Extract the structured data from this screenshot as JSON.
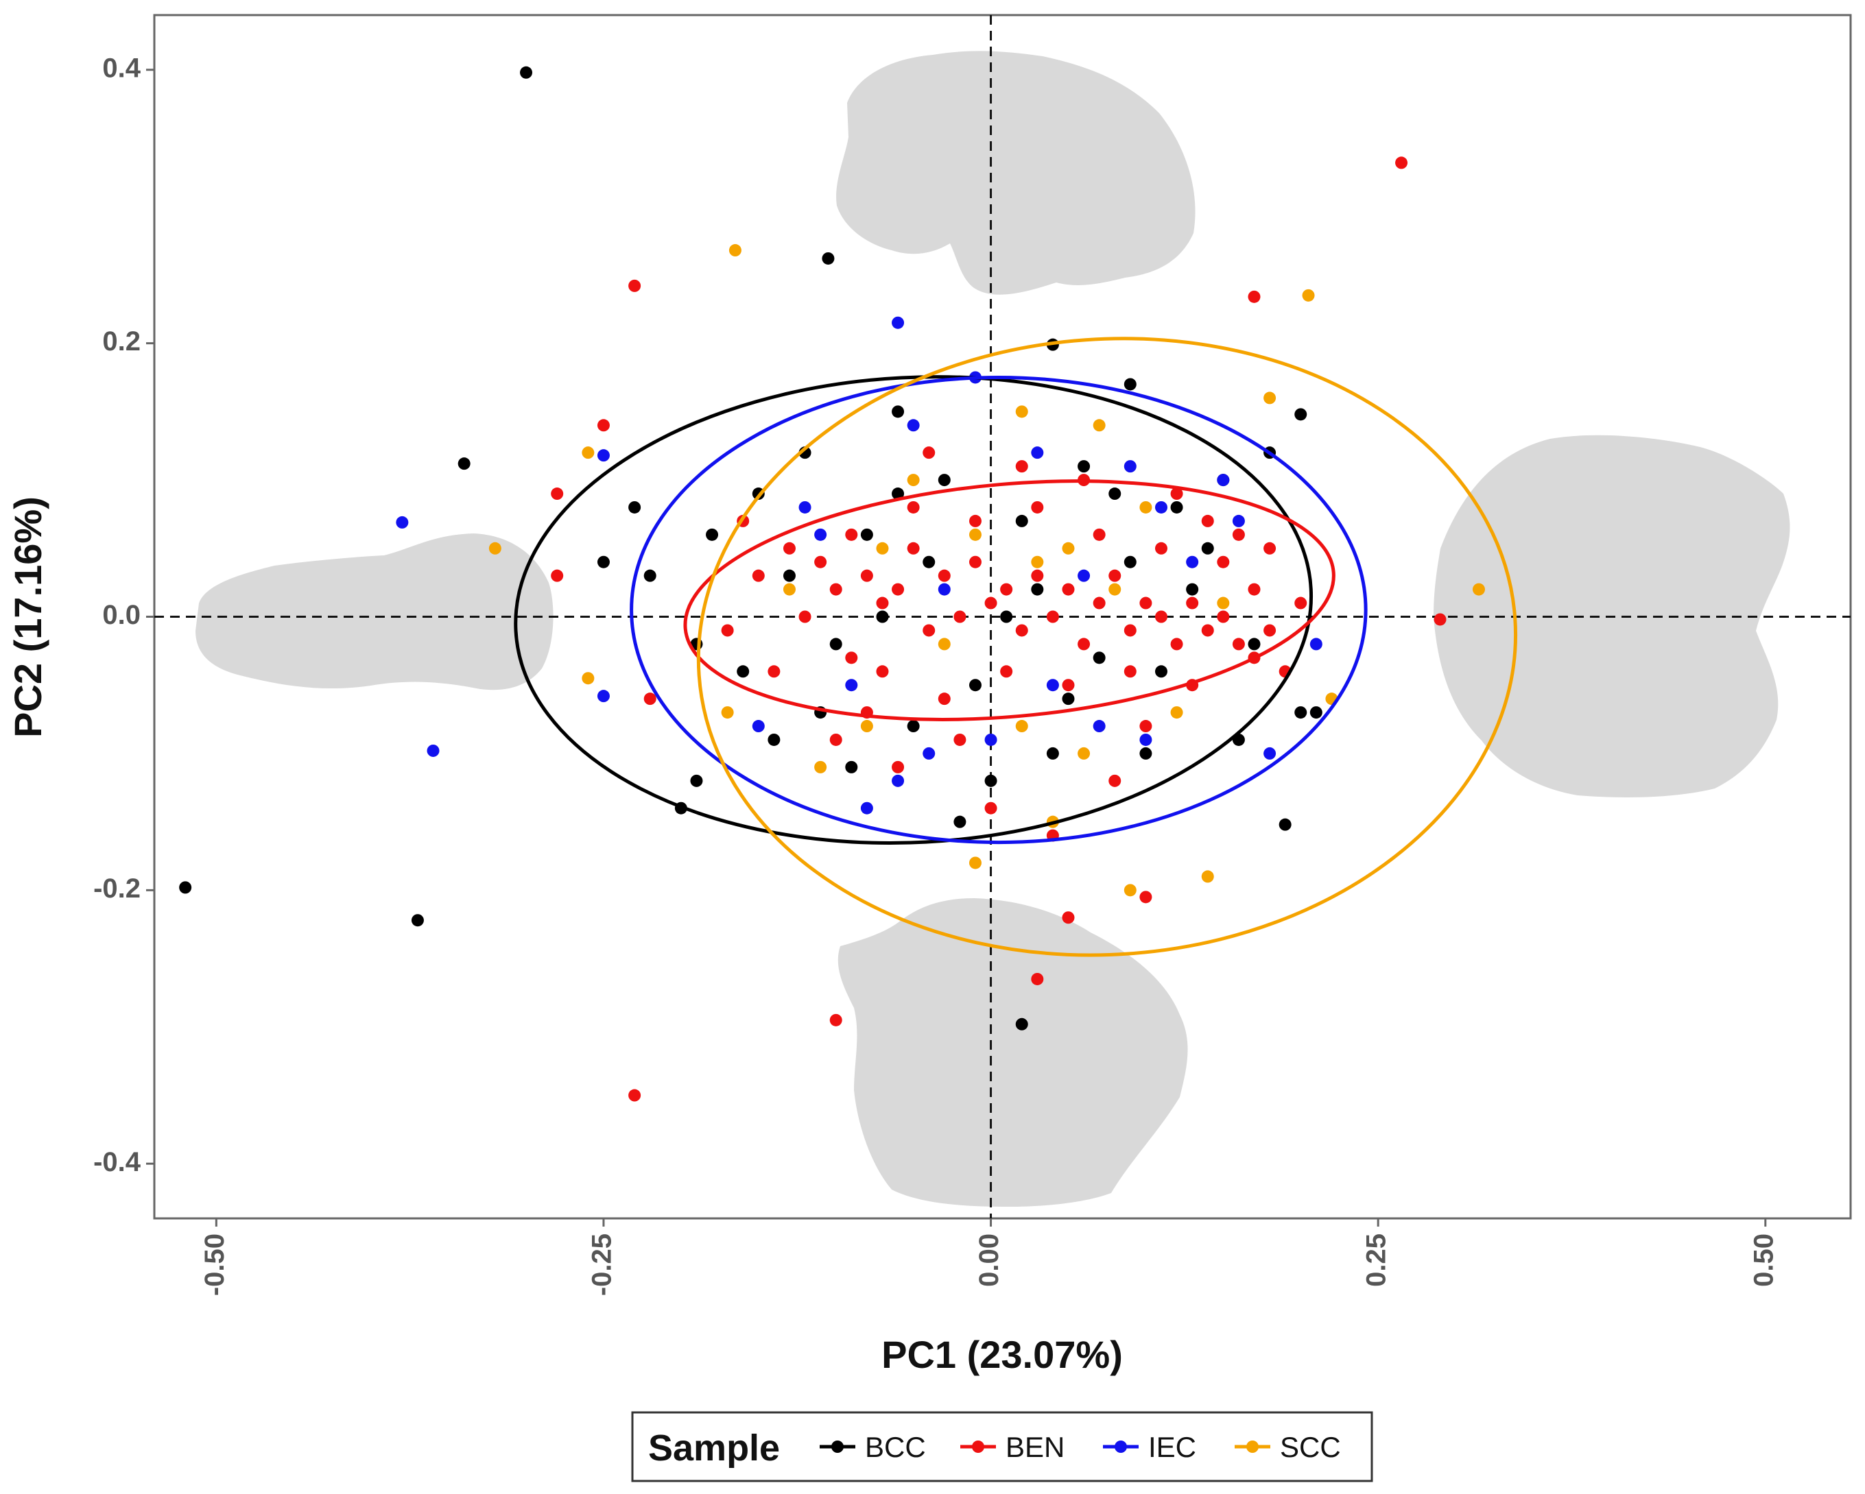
{
  "chart_data": {
    "type": "scatter",
    "title": "",
    "xlabel": "PC1 (23.07%)",
    "ylabel": "PC2 (17.16%)",
    "xlim": [
      -0.54,
      0.555
    ],
    "ylim": [
      -0.44,
      0.44
    ],
    "x_ticks": [
      -0.5,
      -0.25,
      0.0,
      0.25,
      0.5
    ],
    "x_tick_labels": [
      "-0.50",
      "-0.25",
      "0.00",
      "0.25",
      "0.50"
    ],
    "y_ticks": [
      0.4,
      0.2,
      0.0,
      -0.2,
      -0.4
    ],
    "y_tick_labels": [
      "0.4",
      "0.2",
      "0.0",
      "-0.2",
      "-0.4"
    ],
    "reference_lines": {
      "x": 0,
      "y": 0
    },
    "legend": {
      "title": "Sample",
      "placement": "bottom",
      "entries": [
        {
          "label": "BCC",
          "color": "#000000"
        },
        {
          "label": "BEN",
          "color": "#ee1111"
        },
        {
          "label": "IEC",
          "color": "#1111ee"
        },
        {
          "label": "SCC",
          "color": "#f5a300"
        }
      ]
    },
    "series": [
      {
        "name": "BCC",
        "color": "#000000",
        "ellipse": {
          "center": [
            -0.05,
            0.005
          ],
          "rx": 0.257,
          "ry": 0.17,
          "angle_deg": -3
        },
        "points": [
          [
            -0.3,
            0.398
          ],
          [
            -0.105,
            0.262
          ],
          [
            -0.34,
            0.112
          ],
          [
            -0.52,
            -0.198
          ],
          [
            -0.37,
            -0.222
          ],
          [
            0.02,
            -0.298
          ],
          [
            0.04,
            0.199
          ],
          [
            0.2,
            0.148
          ],
          [
            0.19,
            -0.152
          ],
          [
            -0.2,
            -0.14
          ],
          [
            -0.25,
            0.04
          ],
          [
            -0.22,
            0.03
          ],
          [
            -0.19,
            -0.12
          ],
          [
            -0.15,
            0.09
          ],
          [
            -0.12,
            0.12
          ],
          [
            -0.1,
            -0.02
          ],
          [
            -0.08,
            0.06
          ],
          [
            -0.05,
            -0.08
          ],
          [
            -0.03,
            0.1
          ],
          [
            -0.01,
            -0.05
          ],
          [
            0.02,
            0.07
          ],
          [
            0.05,
            -0.06
          ],
          [
            0.08,
            0.09
          ],
          [
            0.11,
            -0.04
          ],
          [
            0.14,
            0.05
          ],
          [
            0.16,
            -0.09
          ],
          [
            0.18,
            0.12
          ],
          [
            0.2,
            -0.07
          ],
          [
            0.09,
            0.17
          ],
          [
            -0.06,
            0.15
          ],
          [
            -0.16,
            -0.04
          ],
          [
            -0.13,
            0.03
          ],
          [
            -0.09,
            -0.11
          ],
          [
            -0.04,
            0.04
          ],
          [
            0.0,
            -0.12
          ],
          [
            0.03,
            0.02
          ],
          [
            0.06,
            0.11
          ],
          [
            0.1,
            -0.1
          ],
          [
            0.13,
            0.02
          ],
          [
            0.17,
            -0.02
          ],
          [
            -0.18,
            0.06
          ],
          [
            -0.11,
            -0.07
          ],
          [
            -0.07,
            0.0
          ],
          [
            0.12,
            0.08
          ],
          [
            0.07,
            -0.03
          ],
          [
            -0.02,
            -0.15
          ],
          [
            0.15,
            0.1
          ],
          [
            0.21,
            -0.07
          ],
          [
            -0.23,
            0.08
          ],
          [
            -0.14,
            -0.09
          ],
          [
            -0.06,
            0.09
          ],
          [
            0.01,
            0.0
          ],
          [
            0.04,
            -0.1
          ],
          [
            0.09,
            0.04
          ],
          [
            -0.19,
            -0.02
          ]
        ]
      },
      {
        "name": "BEN",
        "color": "#ee1111",
        "ellipse": {
          "center": [
            0.012,
            0.012
          ],
          "rx": 0.21,
          "ry": 0.085,
          "angle_deg": -5
        },
        "points": [
          [
            0.265,
            0.332
          ],
          [
            -0.23,
            0.242
          ],
          [
            0.17,
            0.234
          ],
          [
            0.29,
            -0.002
          ],
          [
            -0.23,
            -0.35
          ],
          [
            -0.1,
            -0.295
          ],
          [
            0.03,
            -0.265
          ],
          [
            0.05,
            -0.22
          ],
          [
            0.1,
            -0.205
          ],
          [
            -0.28,
            0.09
          ],
          [
            -0.28,
            0.03
          ],
          [
            -0.25,
            0.14
          ],
          [
            -0.22,
            -0.06
          ],
          [
            -0.15,
            0.03
          ],
          [
            -0.13,
            0.05
          ],
          [
            -0.11,
            0.04
          ],
          [
            -0.1,
            0.02
          ],
          [
            -0.09,
            -0.03
          ],
          [
            -0.08,
            0.03
          ],
          [
            -0.07,
            0.01
          ],
          [
            -0.06,
            0.02
          ],
          [
            -0.05,
            0.05
          ],
          [
            -0.04,
            -0.01
          ],
          [
            -0.03,
            0.03
          ],
          [
            -0.02,
            0.0
          ],
          [
            -0.01,
            0.04
          ],
          [
            0.0,
            0.01
          ],
          [
            0.01,
            0.02
          ],
          [
            0.02,
            -0.01
          ],
          [
            0.03,
            0.03
          ],
          [
            0.04,
            0.0
          ],
          [
            0.05,
            0.02
          ],
          [
            0.06,
            -0.02
          ],
          [
            0.07,
            0.01
          ],
          [
            0.08,
            0.03
          ],
          [
            0.09,
            -0.01
          ],
          [
            0.1,
            0.01
          ],
          [
            0.11,
            0.0
          ],
          [
            0.12,
            -0.02
          ],
          [
            0.13,
            0.01
          ],
          [
            0.14,
            -0.01
          ],
          [
            0.15,
            0.0
          ],
          [
            0.16,
            -0.02
          ],
          [
            0.17,
            -0.03
          ],
          [
            0.18,
            -0.01
          ],
          [
            -0.12,
            0.0
          ],
          [
            -0.09,
            0.06
          ],
          [
            -0.07,
            -0.04
          ],
          [
            -0.05,
            0.08
          ],
          [
            -0.03,
            -0.06
          ],
          [
            -0.01,
            0.07
          ],
          [
            0.01,
            -0.04
          ],
          [
            0.03,
            0.08
          ],
          [
            0.05,
            -0.05
          ],
          [
            0.07,
            0.06
          ],
          [
            0.09,
            -0.04
          ],
          [
            0.11,
            0.05
          ],
          [
            0.13,
            -0.05
          ],
          [
            0.15,
            0.04
          ],
          [
            0.17,
            0.02
          ],
          [
            -0.14,
            -0.04
          ],
          [
            -0.08,
            -0.07
          ],
          [
            -0.02,
            -0.09
          ],
          [
            0.02,
            0.11
          ],
          [
            0.06,
            0.1
          ],
          [
            0.1,
            -0.08
          ],
          [
            0.14,
            0.07
          ],
          [
            -0.06,
            -0.11
          ],
          [
            0.0,
            -0.14
          ],
          [
            0.04,
            -0.16
          ],
          [
            -0.16,
            0.07
          ],
          [
            0.08,
            -0.12
          ],
          [
            0.12,
            0.09
          ],
          [
            -0.04,
            0.12
          ],
          [
            0.18,
            0.05
          ],
          [
            -0.1,
            -0.09
          ],
          [
            0.2,
            0.01
          ],
          [
            0.19,
            -0.04
          ],
          [
            -0.17,
            -0.01
          ],
          [
            0.16,
            0.06
          ]
        ]
      },
      {
        "name": "IEC",
        "color": "#1111ee",
        "ellipse": {
          "center": [
            0.005,
            0.005
          ],
          "rx": 0.237,
          "ry": 0.17,
          "angle_deg": 0
        },
        "points": [
          [
            -0.38,
            0.069
          ],
          [
            -0.36,
            -0.098
          ],
          [
            -0.06,
            0.215
          ],
          [
            -0.25,
            0.118
          ],
          [
            -0.25,
            -0.058
          ],
          [
            -0.01,
            0.175
          ],
          [
            -0.09,
            -0.05
          ],
          [
            -0.05,
            0.14
          ],
          [
            -0.04,
            -0.1
          ],
          [
            0.03,
            0.12
          ],
          [
            0.04,
            -0.05
          ],
          [
            0.09,
            0.11
          ],
          [
            0.1,
            -0.09
          ],
          [
            0.15,
            0.1
          ],
          [
            0.16,
            0.07
          ],
          [
            -0.12,
            0.08
          ],
          [
            -0.15,
            -0.08
          ],
          [
            -0.06,
            -0.12
          ],
          [
            0.07,
            -0.08
          ],
          [
            0.13,
            0.04
          ],
          [
            -0.03,
            0.02
          ],
          [
            0.0,
            -0.09
          ],
          [
            0.06,
            0.03
          ],
          [
            -0.11,
            0.06
          ],
          [
            0.18,
            -0.1
          ],
          [
            0.21,
            -0.02
          ],
          [
            -0.08,
            -0.14
          ],
          [
            0.11,
            0.08
          ]
        ]
      },
      {
        "name": "SCC",
        "color": "#f5a300",
        "ellipse": {
          "center": [
            0.075,
            -0.022
          ],
          "rx": 0.264,
          "ry": 0.225,
          "angle_deg": -4
        },
        "points": [
          [
            -0.165,
            0.268
          ],
          [
            0.205,
            0.235
          ],
          [
            0.315,
            0.02
          ],
          [
            -0.32,
            0.05
          ],
          [
            -0.26,
            -0.045
          ],
          [
            -0.26,
            0.12
          ],
          [
            -0.17,
            -0.07
          ],
          [
            0.18,
            0.16
          ],
          [
            0.07,
            0.14
          ],
          [
            0.02,
            0.15
          ],
          [
            -0.05,
            0.1
          ],
          [
            -0.01,
            0.06
          ],
          [
            0.02,
            -0.08
          ],
          [
            0.04,
            -0.15
          ],
          [
            -0.08,
            -0.08
          ],
          [
            -0.11,
            -0.11
          ],
          [
            0.1,
            0.08
          ],
          [
            0.14,
            -0.19
          ],
          [
            0.09,
            -0.2
          ],
          [
            0.12,
            -0.07
          ],
          [
            0.06,
            -0.1
          ],
          [
            -0.03,
            -0.02
          ],
          [
            0.03,
            0.04
          ],
          [
            0.08,
            0.02
          ],
          [
            -0.07,
            0.05
          ],
          [
            0.15,
            0.01
          ],
          [
            -0.13,
            0.02
          ],
          [
            -0.01,
            -0.18
          ],
          [
            0.05,
            0.05
          ],
          [
            0.22,
            -0.06
          ]
        ]
      }
    ]
  }
}
